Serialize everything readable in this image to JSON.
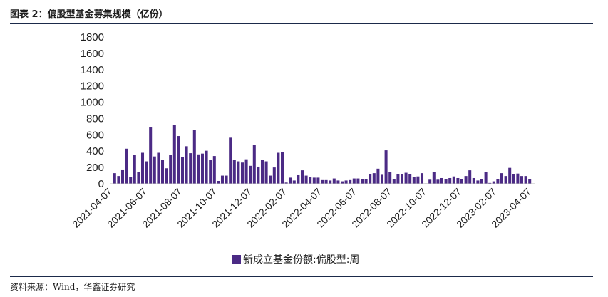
{
  "header": {
    "title": "图表 2：偏股型基金募集规模（亿份）"
  },
  "footer": {
    "source": "资料来源：Wind，华鑫证券研究"
  },
  "colors": {
    "bar": "#4b2a85",
    "axis": "#bfbfbf",
    "rule": "#1b2a4a"
  },
  "chart_data": {
    "type": "bar",
    "title": "",
    "xlabel": "",
    "ylabel": "",
    "ylim": [
      0,
      1800
    ],
    "yticks": [
      0,
      200,
      400,
      600,
      800,
      1000,
      1200,
      1400,
      1600,
      1800
    ],
    "grid": false,
    "legend_position": "bottom",
    "xtick_labels": [
      "2021-04-07",
      "2021-06-07",
      "2021-08-07",
      "2021-10-07",
      "2021-12-07",
      "2022-02-07",
      "2022-04-07",
      "2022-06-07",
      "2022-08-07",
      "2022-10-07",
      "2022-12-07",
      "2023-02-07",
      "2023-04-07"
    ],
    "series": [
      {
        "name": "新成立基金份额:偏股型:周",
        "values": [
          130,
          95,
          175,
          430,
          80,
          355,
          145,
          380,
          275,
          690,
          335,
          380,
          295,
          190,
          350,
          720,
          585,
          330,
          460,
          375,
          660,
          360,
          370,
          405,
          295,
          340,
          35,
          100,
          100,
          565,
          295,
          275,
          260,
          300,
          220,
          480,
          210,
          295,
          275,
          100,
          200,
          380,
          385,
          15,
          75,
          40,
          105,
          165,
          100,
          80,
          75,
          75,
          45,
          45,
          40,
          65,
          40,
          30,
          40,
          45,
          65,
          65,
          60,
          60,
          115,
          130,
          185,
          110,
          410,
          145,
          55,
          115,
          115,
          135,
          120,
          80,
          90,
          130,
          5,
          50,
          140,
          50,
          70,
          55,
          70,
          90,
          70,
          55,
          95,
          165,
          70,
          40,
          60,
          145,
          10,
          30,
          60,
          130,
          95,
          195,
          115,
          125,
          95,
          95,
          55
        ]
      }
    ]
  }
}
